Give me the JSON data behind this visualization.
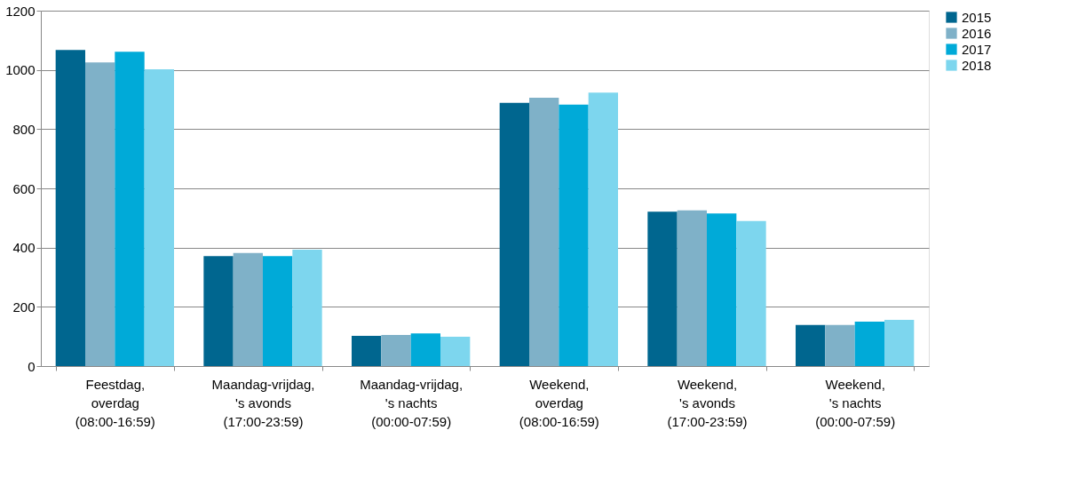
{
  "chart_data": {
    "type": "bar",
    "categories": [
      "Feestdag,\noverdag\n(08:00-16:59)",
      "Maandag-vrijdag,\n's avonds\n(17:00-23:59)",
      "Maandag-vrijdag,\n's nachts\n(00:00-07:59)",
      "Weekend,\noverdag\n(08:00-16:59)",
      "Weekend,\n's avonds\n(17:00-23:59)",
      "Weekend,\n's nachts\n(00:00-07:59)"
    ],
    "series": [
      {
        "name": "2015",
        "color": "#00668f",
        "values": [
          1067,
          371,
          102,
          889,
          521,
          139
        ]
      },
      {
        "name": "2016",
        "color": "#7fb1c8",
        "values": [
          1025,
          382,
          105,
          906,
          526,
          139
        ]
      },
      {
        "name": "2017",
        "color": "#00aad8",
        "values": [
          1061,
          371,
          110,
          883,
          515,
          150
        ]
      },
      {
        "name": "2018",
        "color": "#7dd6ee",
        "values": [
          1002,
          393,
          99,
          923,
          490,
          156
        ]
      }
    ],
    "ylim": [
      0,
      1200
    ],
    "yticks": [
      0,
      200,
      400,
      600,
      800,
      1000,
      1200
    ],
    "grid": "y",
    "legend": "right"
  }
}
